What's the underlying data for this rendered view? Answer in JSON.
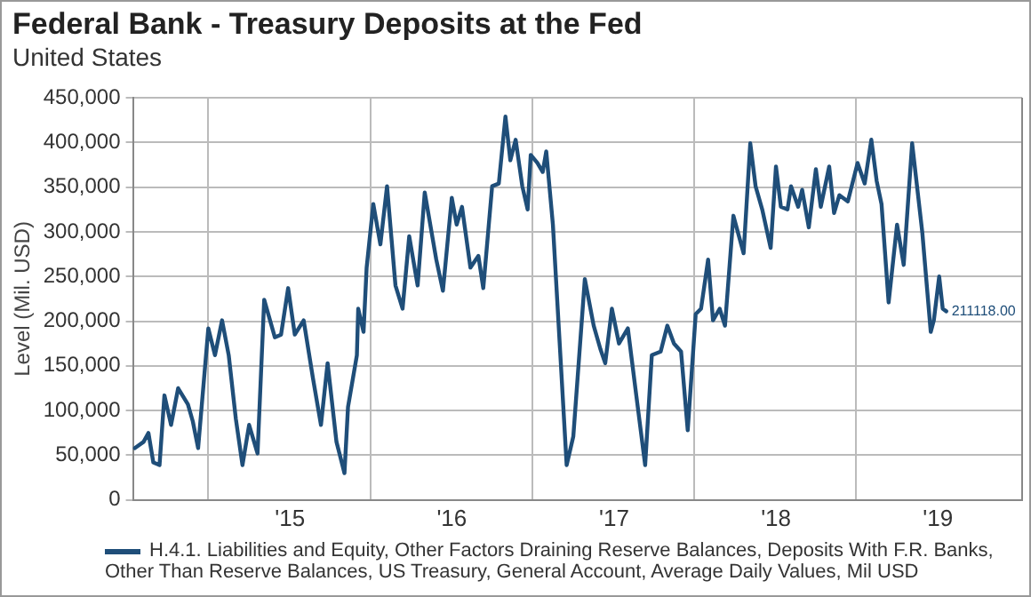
{
  "chart_data": {
    "type": "line",
    "title": "Federal Bank - Treasury Deposits at the Fed",
    "subtitle": "United States",
    "ylabel": "Level (Mil. USD)",
    "x": [
      "2014-01-16",
      "2014-02-05",
      "2014-02-16",
      "2014-02-27",
      "2014-03-13",
      "2014-03-24",
      "2014-04-08",
      "2014-04-24",
      "2014-05-16",
      "2014-05-27",
      "2014-06-08",
      "2014-07-01",
      "2014-07-16",
      "2014-08-01",
      "2014-08-16",
      "2014-09-01",
      "2014-09-16",
      "2014-10-01",
      "2014-10-20",
      "2014-11-04",
      "2014-11-28",
      "2014-12-12",
      "2014-12-28",
      "2015-01-12",
      "2015-02-01",
      "2015-02-22",
      "2015-03-12",
      "2015-03-27",
      "2015-04-16",
      "2015-05-04",
      "2015-05-12",
      "2015-06-01",
      "2015-06-04",
      "2015-06-16",
      "2015-06-23",
      "2015-07-08",
      "2015-07-24",
      "2015-08-08",
      "2015-08-27",
      "2015-09-12",
      "2015-09-27",
      "2015-10-16",
      "2015-11-01",
      "2015-11-27",
      "2015-12-12",
      "2016-01-01",
      "2016-01-12",
      "2016-01-24",
      "2016-02-12",
      "2016-03-01",
      "2016-03-12",
      "2016-04-01",
      "2016-04-16",
      "2016-05-01",
      "2016-05-12",
      "2016-05-24",
      "2016-06-08",
      "2016-06-20",
      "2016-06-27",
      "2016-07-12",
      "2016-07-24",
      "2016-08-01",
      "2016-08-16",
      "2016-09-16",
      "2016-10-01",
      "2016-10-27",
      "2016-11-16",
      "2016-12-01",
      "2016-12-12",
      "2016-12-27",
      "2017-01-12",
      "2017-02-01",
      "2017-02-20",
      "2017-03-12",
      "2017-03-27",
      "2017-04-16",
      "2017-05-01",
      "2017-05-16",
      "2017-06-01",
      "2017-06-16",
      "2017-07-04",
      "2017-07-16",
      "2017-08-01",
      "2017-08-12",
      "2017-08-27",
      "2017-09-08",
      "2017-09-27",
      "2017-10-20",
      "2017-11-04",
      "2017-11-16",
      "2017-12-01",
      "2017-12-20",
      "2018-01-01",
      "2018-01-12",
      "2018-01-27",
      "2018-02-04",
      "2018-02-20",
      "2018-03-01",
      "2018-03-16",
      "2018-04-01",
      "2018-04-12",
      "2018-05-01",
      "2018-05-12",
      "2018-05-24",
      "2018-06-12",
      "2018-07-04",
      "2018-07-20",
      "2018-08-04",
      "2018-08-16",
      "2018-08-27",
      "2018-09-12",
      "2018-10-01",
      "2018-10-16",
      "2018-11-04",
      "2018-11-27",
      "2018-12-16",
      "2018-12-23",
      "2019-01-04",
      "2019-01-12",
      "2019-01-20"
    ],
    "series": [
      {
        "name": "H.4.1. Liabilities and Equity, Other Factors Draining Reserve Balances, Deposits With F.R. Banks, Other Than Reserve Balances, US Treasury, General Account, Average Daily Values, Mil USD",
        "color": "#1f4e79",
        "values": [
          58000,
          65000,
          75000,
          42000,
          39000,
          117000,
          84000,
          125000,
          107000,
          88000,
          58000,
          192000,
          162000,
          201000,
          162000,
          91000,
          39000,
          84000,
          52000,
          224000,
          182000,
          185000,
          237000,
          185000,
          201000,
          136000,
          84000,
          153000,
          65000,
          30000,
          104000,
          162000,
          214000,
          188000,
          260000,
          331000,
          286000,
          351000,
          240000,
          214000,
          295000,
          240000,
          344000,
          269000,
          234000,
          338000,
          308000,
          328000,
          260000,
          273000,
          237000,
          351000,
          354000,
          429000,
          380000,
          403000,
          351000,
          325000,
          386000,
          377000,
          367000,
          390000,
          308000,
          39000,
          71000,
          247000,
          195000,
          169000,
          153000,
          214000,
          175000,
          192000,
          117000,
          39000,
          162000,
          166000,
          195000,
          175000,
          166000,
          78000,
          208000,
          214000,
          269000,
          201000,
          214000,
          195000,
          318000,
          276000,
          399000,
          351000,
          325000,
          282000,
          373000,
          328000,
          325000,
          351000,
          328000,
          347000,
          305000,
          370000,
          328000,
          373000,
          321000,
          341000,
          334000,
          377000,
          354000,
          403000,
          357000,
          331000,
          221000,
          308000,
          263000,
          399000,
          299000,
          188000,
          201000,
          250000,
          214000,
          211118
        ],
        "value_labels": [
          null,
          null,
          null,
          null,
          null,
          null,
          null,
          null,
          null,
          null,
          null,
          null,
          null,
          null,
          null,
          null,
          null,
          null,
          null,
          null,
          null,
          null,
          null,
          null,
          null,
          null,
          null,
          null,
          null,
          null,
          null,
          null,
          null,
          null,
          null,
          null,
          null,
          null,
          null,
          null,
          null,
          null,
          null,
          null,
          null,
          null,
          null,
          null,
          null,
          null,
          null,
          null,
          null,
          null,
          null,
          null,
          null,
          null,
          null,
          null,
          null,
          null,
          null,
          null,
          null,
          null,
          null,
          null,
          null,
          null,
          null,
          null,
          null,
          null,
          null,
          null,
          null,
          null,
          null,
          null,
          null,
          null,
          null,
          null,
          null,
          null,
          null,
          null,
          null,
          null,
          null,
          null,
          null,
          null,
          null,
          null,
          null,
          null,
          null,
          null,
          null,
          null,
          null,
          null,
          null,
          null,
          null,
          null,
          null,
          null,
          null,
          null,
          null,
          null,
          null,
          null,
          null,
          null,
          null,
          "211118.00"
        ]
      }
    ],
    "xlim": [
      "2014-01-12",
      "2019-07-10"
    ],
    "xticks": [
      {
        "value": "2014-07-01",
        "label": null
      },
      {
        "value": "2015-01-01",
        "label": "'15"
      },
      {
        "value": "2015-07-01",
        "label": null
      },
      {
        "value": "2016-01-01",
        "label": "'16"
      },
      {
        "value": "2016-07-01",
        "label": null
      },
      {
        "value": "2017-01-01",
        "label": "'17"
      },
      {
        "value": "2017-07-01",
        "label": null
      },
      {
        "value": "2018-01-01",
        "label": "'18"
      },
      {
        "value": "2018-07-01",
        "label": null
      },
      {
        "value": "2019-01-01",
        "label": "'19"
      }
    ],
    "ylim": [
      0,
      450000
    ],
    "yticks": [
      {
        "value": 0,
        "label": "0"
      },
      {
        "value": 50000,
        "label": "50,000"
      },
      {
        "value": 100000,
        "label": "100,000"
      },
      {
        "value": 150000,
        "label": "150,000"
      },
      {
        "value": 200000,
        "label": "200,000"
      },
      {
        "value": 250000,
        "label": "250,000"
      },
      {
        "value": 300000,
        "label": "300,000"
      },
      {
        "value": 350000,
        "label": "350,000"
      },
      {
        "value": 400000,
        "label": "400,000"
      },
      {
        "value": 450000,
        "label": "450,000"
      }
    ],
    "grid": true,
    "legend": "bottom",
    "marker": "none",
    "line_style": "solid"
  }
}
